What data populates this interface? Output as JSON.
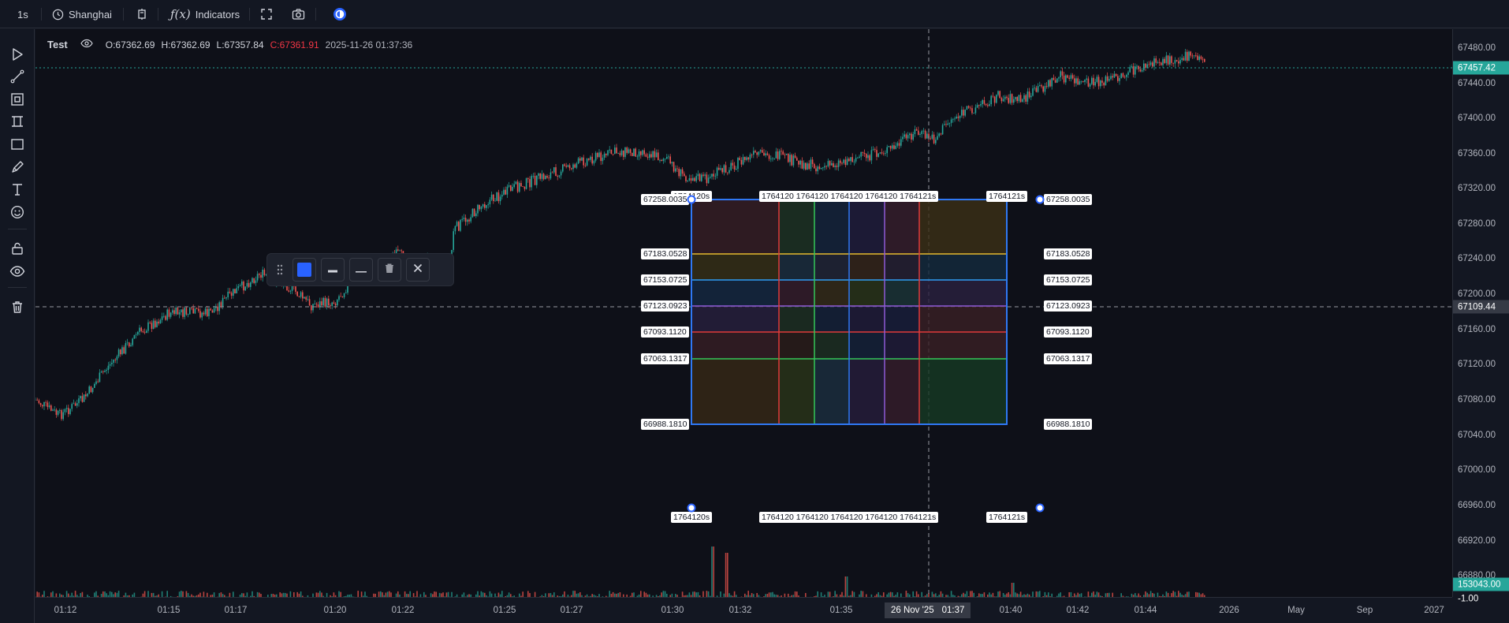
{
  "toolbar": {
    "interval": "1s",
    "timezone": "Shanghai",
    "indicators_label": "Indicators"
  },
  "legend": {
    "symbol": "Test",
    "open": "O:67362.69",
    "high": "H:67362.69",
    "low": "L:67357.84",
    "close": "C:67361.91",
    "datetime": "2025-11-26 01:37:36"
  },
  "price_axis": {
    "ticks": [
      "67480.00",
      "67440.00",
      "67400.00",
      "67360.00",
      "67320.00",
      "67280.00",
      "67240.00",
      "67200.00",
      "67160.00",
      "67120.00",
      "67080.00",
      "67040.00",
      "67000.00",
      "66960.00",
      "66920.00",
      "66880.00"
    ],
    "last_price": "67457.42",
    "crosshair_price": "67109.44",
    "volume_badge": "153043.00",
    "lower_badge": "-1.00"
  },
  "time_axis": {
    "ticks": [
      "01:12",
      "01:15",
      "01:17",
      "01:20",
      "01:22",
      "01:25",
      "01:27",
      "01:30",
      "01:32",
      "01:35",
      "01:40",
      "01:42",
      "01:44",
      "2026",
      "May",
      "Sep",
      "2027"
    ],
    "crosshair_date": "26 Nov '25",
    "crosshair_time": "01:37"
  },
  "drawing": {
    "levels": [
      "67258.0035",
      "67183.0528",
      "67153.0725",
      "67123.0923",
      "67093.1120",
      "67063.1317",
      "66988.1810"
    ],
    "time_left": "1764120s",
    "time_right": "1764121s",
    "time_middle": "1764120 1764120 1764120 1764120 1764121s",
    "grid_lines_horizontal": [
      "#e5b92e",
      "#2f9df4",
      "#8e5ad6",
      "#e03a3a",
      "#34c759"
    ],
    "grid_lines_vertical": [
      "#e03a3a",
      "#34c759",
      "#2f78f4",
      "#8e5ad6",
      "#e03a3a"
    ],
    "border_color": "#2f78f4"
  },
  "draw_toolbar": {
    "color": "#2962ff"
  },
  "colors": {
    "up": "#26a69a",
    "down": "#ef5350",
    "accent": "#2962ff",
    "last_price_badge": "#26a69a"
  },
  "icons": {
    "left_tools": [
      "cursor-icon",
      "trend-line-icon",
      "pattern-icon",
      "fib-channel-icon",
      "rectangle-icon",
      "brush-icon",
      "text-icon",
      "emoji-icon",
      "lock-icon",
      "eye-icon",
      "trash-icon"
    ]
  }
}
